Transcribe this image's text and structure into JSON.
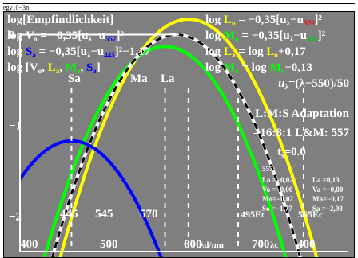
{
  "caption": "egy10−3n",
  "colors": {
    "background": "#7f7f7f",
    "text": "#ffffff",
    "L": "#ffff00",
    "M": "#00ff00",
    "S": "#0000ff",
    "V": "#ffffff",
    "sub_L": "#ff0000",
    "sub_M": "#00cc00",
    "sub_S": "#0000ff"
  },
  "header": {
    "left": [
      {
        "text": "log[Empfindlichkeit]"
      },
      {
        "base": "log V",
        "sub": "o",
        "rest": " = −0,35[u",
        "lam": "λ",
        "mid": "−u",
        "idx": "557",
        "tail": "]²"
      },
      {
        "base": "log S",
        "sub": "a",
        "rest": " = −0,35[u",
        "lam": "λ",
        "mid": "−u",
        "idx": "445",
        "tail": "]²−1,17"
      },
      {
        "text": "log [V",
        "sub1": "o",
        "c1": ", L",
        "sub2": "a",
        "c2": ", M",
        "sub3": "a",
        "c3": ", S",
        "sub4": "a",
        "c4": "]"
      }
    ],
    "right": [
      {
        "base": "log L",
        "sub": "o",
        "rest": " = −0,35[u",
        "lam": "λ",
        "mid": "−u",
        "idx": "570",
        "tail": "]²"
      },
      {
        "base": "log M",
        "sub": "o",
        "rest": " = −0,35[u",
        "lam": "λ",
        "mid": "−u",
        "idx": "545",
        "tail": "]²"
      },
      {
        "base": "log L",
        "sub": "a",
        "rest": " = log L",
        "sub2": "o",
        "tail": "+0,17"
      },
      {
        "base": "log M",
        "sub": "a",
        "rest": " = log M",
        "sub2": "o",
        "tail": "−0,13"
      },
      {
        "text": "uλ=(λ−550)/50"
      }
    ]
  },
  "peak_labels": [
    "Sa",
    "Ma",
    "La"
  ],
  "info": {
    "line1": "L:M:S  Adaptation",
    "line2": "=16:8:1 L&M: 557",
    "line3": "ts=0.0",
    "block_title": "557:",
    "rows": [
      [
        "Lo =−0,02",
        "La =0,13"
      ],
      [
        "Vo =−0,00",
        "Va =−0,00"
      ],
      [
        "Mo=−0,02",
        "Ma=−0,17"
      ],
      [
        "So =−1,77",
        "Sa =−2,98"
      ]
    ]
  },
  "marker_labels": [
    "445",
    "545",
    "570",
    "495Ec",
    "565Ec"
  ],
  "x_tick_labels": [
    "400",
    "500",
    "600",
    "700",
    "400"
  ],
  "x_axis_label": "λd/nm",
  "x_axis_label2": "λc",
  "y_tick_labels": [
    "0",
    "−1",
    "−2"
  ],
  "chart_data": {
    "type": "line",
    "title": "log[Empfindlichkeit]",
    "xlabel": "λd/nm",
    "ylabel": "log[Empfindlichkeit]",
    "xlim": [
      390,
      740
    ],
    "ylim": [
      -2.4,
      0.25
    ],
    "grid": false,
    "x_ticks": [
      400,
      500,
      600,
      700
    ],
    "y_ticks": [
      0,
      -1,
      -2
    ],
    "series": [
      {
        "name": "La",
        "color": "#ffff00",
        "style": "solid",
        "center": 570,
        "offset": 0.17,
        "x": [
          420,
          450,
          480,
          510,
          540,
          570,
          600,
          630,
          660,
          690,
          720
        ],
        "y": [
          -2.98,
          -2.09,
          -1.34,
          -0.7,
          -0.2,
          0.17,
          -0.2,
          -0.7,
          -1.34,
          -2.09,
          -2.98
        ]
      },
      {
        "name": "Ma",
        "color": "#00ff00",
        "style": "solid",
        "center": 545,
        "offset": -0.13,
        "x": [
          425,
          455,
          485,
          515,
          545,
          575,
          605,
          635,
          665
        ],
        "y": [
          -2.15,
          -1.39,
          -0.69,
          -0.2,
          -0.13,
          -0.46,
          -0.93,
          -1.57,
          -2.4
        ]
      },
      {
        "name": "Vo",
        "color": "#ffffff",
        "style": "solid",
        "center": 557,
        "offset": 0,
        "x": [
          430,
          460,
          490,
          520,
          557,
          590,
          620,
          650,
          680
        ],
        "y": [
          -2.16,
          -1.32,
          -0.61,
          -0.19,
          0.0,
          -0.15,
          -0.56,
          -1.24,
          -2.16
        ]
      },
      {
        "name": "Vo (dashed)",
        "color": "#000000",
        "style": "dashed",
        "center": 557,
        "offset": 0,
        "x": [
          430,
          460,
          490,
          520,
          557,
          590,
          620,
          650,
          680
        ],
        "y": [
          -2.16,
          -1.32,
          -0.61,
          -0.19,
          0.0,
          -0.15,
          -0.56,
          -1.24,
          -2.16
        ]
      },
      {
        "name": "Sa",
        "color": "#0000ff",
        "style": "solid",
        "center": 445,
        "offset": -1.17,
        "x": [
          395,
          410,
          425,
          445,
          465,
          480,
          495,
          510
        ],
        "y": [
          -2.04,
          -1.6,
          -1.31,
          -1.17,
          -1.31,
          -1.6,
          -2.04,
          -2.4
        ]
      }
    ],
    "vlines": [
      {
        "x": 445,
        "style": "dashed"
      },
      {
        "x": 545,
        "style": "dashed"
      },
      {
        "x": 570,
        "style": "dashed"
      },
      {
        "x": 623,
        "style": "dashed"
      },
      {
        "x": 693,
        "style": "dashed"
      }
    ]
  }
}
